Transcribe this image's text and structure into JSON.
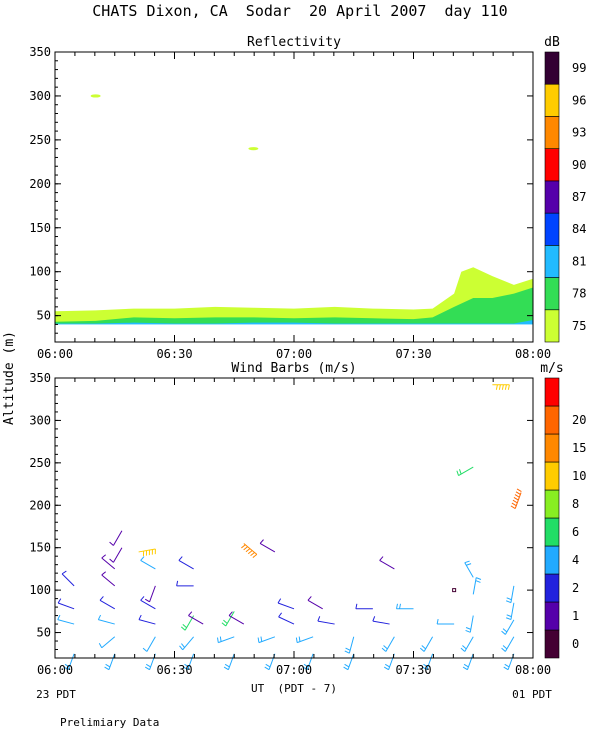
{
  "figure": {
    "title": "CHATS Dixon, CA  Sodar  20 April 2007  day 110",
    "ylabel": "Altitude (m)",
    "xlabel": "UT  (PDT - 7)",
    "x_left_note": "23 PDT",
    "x_right_note": "01 PDT",
    "footnote": "Prelimiary Data"
  },
  "chart_data": [
    {
      "type": "area",
      "title": "Reflectivity",
      "units_label": "dB",
      "x_ticks": [
        "06:00",
        "06:30",
        "07:00",
        "07:30",
        "08:00"
      ],
      "x_range_hours": [
        6.0,
        8.0
      ],
      "ylim": [
        20,
        350
      ],
      "y_ticks": [
        50,
        100,
        150,
        200,
        250,
        300,
        350
      ],
      "colorbar": {
        "labels": [
          "75",
          "78",
          "81",
          "84",
          "87",
          "90",
          "93",
          "96",
          "99"
        ],
        "colors": [
          "#ccff33",
          "#33dd55",
          "#22bbff",
          "#0044ff",
          "#5500aa",
          "#ff0000",
          "#ff8800",
          "#ffcc00",
          "#330033"
        ]
      },
      "layers": [
        {
          "level": "75",
          "color": "#ccff33",
          "x": [
            6.0,
            6.17,
            6.33,
            6.5,
            6.67,
            6.83,
            7.0,
            7.17,
            7.33,
            7.5,
            7.58,
            7.67,
            7.7,
            7.75,
            7.83,
            7.92,
            8.0
          ],
          "top": [
            55,
            56,
            58,
            58,
            60,
            59,
            58,
            60,
            58,
            57,
            58,
            75,
            100,
            105,
            95,
            85,
            92
          ]
        },
        {
          "level": "78",
          "color": "#33dd55",
          "x": [
            6.0,
            6.17,
            6.33,
            6.5,
            6.67,
            6.83,
            7.0,
            7.17,
            7.33,
            7.5,
            7.58,
            7.67,
            7.75,
            7.83,
            7.92,
            8.0
          ],
          "top": [
            43,
            44,
            48,
            47,
            48,
            48,
            47,
            48,
            47,
            46,
            48,
            60,
            70,
            70,
            75,
            82
          ]
        },
        {
          "level": "81",
          "color": "#22bbff",
          "x": [
            6.0,
            6.17,
            6.33,
            6.5,
            6.67,
            6.83,
            7.0,
            7.17,
            7.33,
            7.5,
            7.58,
            7.67,
            7.75,
            7.83,
            7.92,
            8.0
          ],
          "top": [
            41,
            41,
            42,
            41,
            41,
            42,
            42,
            41,
            41,
            41,
            41,
            41,
            41,
            41,
            41,
            45
          ]
        }
      ],
      "blobs": [
        {
          "x": 6.17,
          "y": 300,
          "color": "#ccff33",
          "level": "75"
        },
        {
          "x": 6.83,
          "y": 240,
          "color": "#ccff33",
          "level": "75"
        }
      ]
    },
    {
      "type": "scatter",
      "title": "Wind Barbs (m/s)",
      "units_label": "m/s",
      "x_ticks": [
        "06:00",
        "06:30",
        "07:00",
        "07:30",
        "08:00"
      ],
      "x_range_hours": [
        6.0,
        8.0
      ],
      "ylim": [
        20,
        350
      ],
      "y_ticks": [
        50,
        100,
        150,
        200,
        250,
        300,
        350
      ],
      "colorbar": {
        "labels": [
          "0",
          "1",
          "2",
          "4",
          "6",
          "8",
          "10",
          "15",
          "20"
        ],
        "colors": [
          "#440033",
          "#5500aa",
          "#2222dd",
          "#22aaff",
          "#22dd66",
          "#88ee22",
          "#ffcc00",
          "#ff8800",
          "#ff6600",
          "#ff0000"
        ]
      },
      "barbs": [
        {
          "t": 6.08,
          "alt": 25,
          "dir": 200,
          "speed": 5
        },
        {
          "t": 6.08,
          "alt": 60,
          "dir": 285,
          "speed": 4
        },
        {
          "t": 6.08,
          "alt": 78,
          "dir": 290,
          "speed": 3
        },
        {
          "t": 6.08,
          "alt": 105,
          "dir": 315,
          "speed": 3
        },
        {
          "t": 6.25,
          "alt": 25,
          "dir": 200,
          "speed": 5
        },
        {
          "t": 6.25,
          "alt": 45,
          "dir": 230,
          "speed": 4
        },
        {
          "t": 6.25,
          "alt": 60,
          "dir": 285,
          "speed": 4
        },
        {
          "t": 6.25,
          "alt": 78,
          "dir": 300,
          "speed": 3
        },
        {
          "t": 6.25,
          "alt": 105,
          "dir": 310,
          "speed": 1.5
        },
        {
          "t": 6.25,
          "alt": 125,
          "dir": 310,
          "speed": 1.5
        },
        {
          "t": 6.28,
          "alt": 150,
          "dir": 210,
          "speed": 1.5
        },
        {
          "t": 6.28,
          "alt": 170,
          "dir": 210,
          "speed": 1.5
        },
        {
          "t": 6.35,
          "alt": 145,
          "dir": 80,
          "speed": 14
        },
        {
          "t": 6.42,
          "alt": 25,
          "dir": 200,
          "speed": 5
        },
        {
          "t": 6.42,
          "alt": 45,
          "dir": 210,
          "speed": 4
        },
        {
          "t": 6.42,
          "alt": 60,
          "dir": 285,
          "speed": 3
        },
        {
          "t": 6.42,
          "alt": 78,
          "dir": 300,
          "speed": 3
        },
        {
          "t": 6.42,
          "alt": 105,
          "dir": 200,
          "speed": 1.5
        },
        {
          "t": 6.42,
          "alt": 125,
          "dir": 300,
          "speed": 4
        },
        {
          "t": 6.58,
          "alt": 25,
          "dir": 200,
          "speed": 5
        },
        {
          "t": 6.58,
          "alt": 45,
          "dir": 220,
          "speed": 5
        },
        {
          "t": 6.58,
          "alt": 70,
          "dir": 210,
          "speed": 7
        },
        {
          "t": 6.58,
          "alt": 105,
          "dir": 270,
          "speed": 3
        },
        {
          "t": 6.58,
          "alt": 125,
          "dir": 300,
          "speed": 3
        },
        {
          "t": 6.62,
          "alt": 60,
          "dir": 300,
          "speed": 1.5
        },
        {
          "t": 6.75,
          "alt": 25,
          "dir": 200,
          "speed": 5
        },
        {
          "t": 6.75,
          "alt": 45,
          "dir": 250,
          "speed": 5
        },
        {
          "t": 6.75,
          "alt": 75,
          "dir": 210,
          "speed": 7
        },
        {
          "t": 6.79,
          "alt": 60,
          "dir": 300,
          "speed": 1.5
        },
        {
          "t": 6.79,
          "alt": 155,
          "dir": 130,
          "speed": 19
        },
        {
          "t": 6.92,
          "alt": 25,
          "dir": 200,
          "speed": 5
        },
        {
          "t": 6.92,
          "alt": 45,
          "dir": 250,
          "speed": 5
        },
        {
          "t": 6.92,
          "alt": 145,
          "dir": 300,
          "speed": 1.5
        },
        {
          "t": 7.0,
          "alt": 60,
          "dir": 295,
          "speed": 3
        },
        {
          "t": 7.0,
          "alt": 78,
          "dir": 290,
          "speed": 3
        },
        {
          "t": 7.08,
          "alt": 25,
          "dir": 200,
          "speed": 5
        },
        {
          "t": 7.08,
          "alt": 45,
          "dir": 250,
          "speed": 5
        },
        {
          "t": 7.12,
          "alt": 78,
          "dir": 300,
          "speed": 1.5
        },
        {
          "t": 7.17,
          "alt": 60,
          "dir": 280,
          "speed": 3
        },
        {
          "t": 7.25,
          "alt": 25,
          "dir": 200,
          "speed": 5
        },
        {
          "t": 7.25,
          "alt": 45,
          "dir": 195,
          "speed": 5
        },
        {
          "t": 7.33,
          "alt": 78,
          "dir": 270,
          "speed": 3
        },
        {
          "t": 7.4,
          "alt": 60,
          "dir": 280,
          "speed": 3
        },
        {
          "t": 7.42,
          "alt": 25,
          "dir": 200,
          "speed": 5
        },
        {
          "t": 7.42,
          "alt": 45,
          "dir": 210,
          "speed": 5
        },
        {
          "t": 7.42,
          "alt": 125,
          "dir": 300,
          "speed": 1.5
        },
        {
          "t": 7.5,
          "alt": 78,
          "dir": 270,
          "speed": 5
        },
        {
          "t": 7.58,
          "alt": 25,
          "dir": 200,
          "speed": 5
        },
        {
          "t": 7.58,
          "alt": 45,
          "dir": 210,
          "speed": 5
        },
        {
          "t": 7.67,
          "alt": 100,
          "dir": 0,
          "speed": 0.5
        },
        {
          "t": 7.67,
          "alt": 60,
          "dir": 270,
          "speed": 4
        },
        {
          "t": 7.75,
          "alt": 25,
          "dir": 200,
          "speed": 5
        },
        {
          "t": 7.75,
          "alt": 45,
          "dir": 210,
          "speed": 5
        },
        {
          "t": 7.75,
          "alt": 70,
          "dir": 190,
          "speed": 5
        },
        {
          "t": 7.75,
          "alt": 95,
          "dir": 10,
          "speed": 5
        },
        {
          "t": 7.75,
          "alt": 115,
          "dir": 330,
          "speed": 5
        },
        {
          "t": 7.75,
          "alt": 245,
          "dir": 240,
          "speed": 6
        },
        {
          "t": 7.83,
          "alt": 342,
          "dir": 90,
          "speed": 14
        },
        {
          "t": 7.92,
          "alt": 25,
          "dir": 200,
          "speed": 5
        },
        {
          "t": 7.92,
          "alt": 45,
          "dir": 210,
          "speed": 5
        },
        {
          "t": 7.92,
          "alt": 65,
          "dir": 210,
          "speed": 5
        },
        {
          "t": 7.92,
          "alt": 85,
          "dir": 190,
          "speed": 5
        },
        {
          "t": 7.92,
          "alt": 105,
          "dir": 190,
          "speed": 5
        },
        {
          "t": 7.95,
          "alt": 215,
          "dir": 200,
          "speed": 20
        }
      ]
    }
  ]
}
